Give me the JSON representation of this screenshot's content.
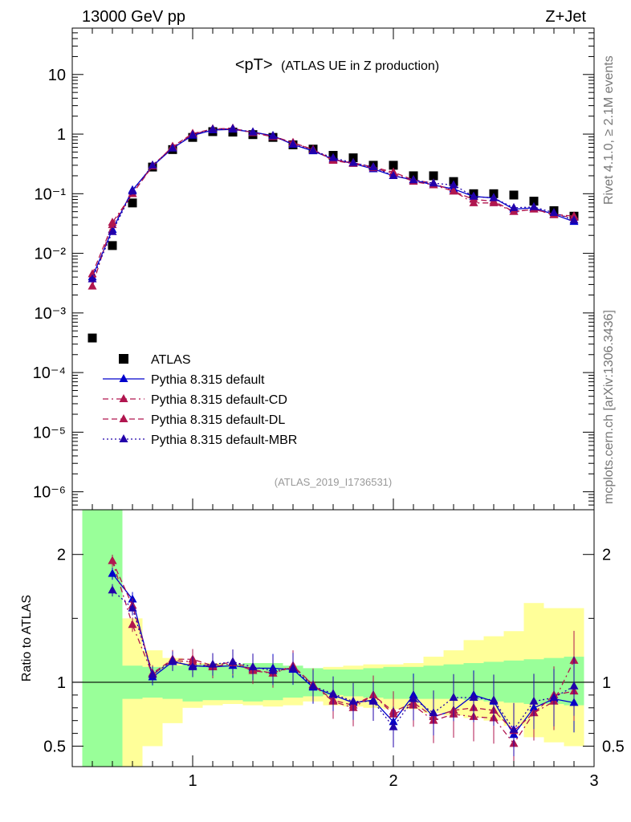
{
  "header": {
    "left": "13000 GeV pp",
    "right": "Z+Jet"
  },
  "side_labels": {
    "rivet": "Rivet 4.1.0, ≥ 2.1M events",
    "mcplots": "mcplots.cern.ch [arXiv:1306.3436]"
  },
  "analysis_ref": "(ATLAS_2019_I1736531)",
  "chart_data": [
    {
      "type": "scatter",
      "title": "<pT> (ATLAS UE in Z production)",
      "title_main": "<pT>",
      "title_sub": "(ATLAS UE in Z production)",
      "xlim": [
        0.4,
        3.0
      ],
      "ylim": [
        5e-07,
        60
      ],
      "yscale": "log",
      "ytick_labels": [
        "10",
        "1",
        "10⁻¹",
        "10⁻²",
        "10⁻³",
        "10⁻⁴",
        "10⁻⁵",
        "10⁻⁶"
      ],
      "x": [
        0.5,
        0.6,
        0.7,
        0.8,
        0.9,
        1.0,
        1.1,
        1.2,
        1.3,
        1.4,
        1.5,
        1.6,
        1.7,
        1.8,
        1.9,
        2.0,
        2.1,
        2.2,
        2.3,
        2.4,
        2.5,
        2.6,
        2.7,
        2.8,
        2.9
      ],
      "series": [
        {
          "name": "ATLAS",
          "color": "#000000",
          "marker": "square",
          "values": [
            0.00038,
            0.0135,
            0.07,
            0.28,
            0.55,
            0.88,
            1.1,
            1.08,
            0.98,
            0.88,
            0.66,
            0.56,
            0.44,
            0.4,
            0.3,
            0.3,
            0.2,
            0.2,
            0.16,
            0.1,
            0.1,
            0.095,
            0.075,
            0.052,
            0.042
          ]
        },
        {
          "name": "Pythia 8.315 default",
          "color": "#0000cc",
          "marker": "triangle",
          "dash": "",
          "values": [
            0.004,
            0.025,
            0.115,
            0.29,
            0.58,
            0.95,
            1.17,
            1.2,
            1.08,
            0.94,
            0.67,
            0.52,
            0.38,
            0.32,
            0.26,
            0.2,
            0.17,
            0.14,
            0.12,
            0.09,
            0.085,
            0.055,
            0.058,
            0.045,
            0.034
          ]
        },
        {
          "name": "Pythia 8.315 default-CD",
          "color": "#b0164f",
          "marker": "triangle",
          "dash": "7,4,2,4",
          "values": [
            0.0028,
            0.033,
            0.1,
            0.3,
            0.6,
            1.0,
            1.2,
            1.23,
            1.05,
            0.9,
            0.71,
            0.55,
            0.36,
            0.32,
            0.27,
            0.22,
            0.16,
            0.14,
            0.11,
            0.07,
            0.07,
            0.05,
            0.055,
            0.044,
            0.04
          ]
        },
        {
          "name": "Pythia 8.315 default-DL",
          "color": "#b0164f",
          "marker": "triangle",
          "dash": "7,4",
          "values": [
            0.0045,
            0.03,
            0.1,
            0.29,
            0.62,
            1.02,
            1.22,
            1.25,
            1.06,
            0.92,
            0.72,
            0.55,
            0.37,
            0.33,
            0.28,
            0.23,
            0.17,
            0.15,
            0.11,
            0.08,
            0.075,
            0.05,
            0.055,
            0.045,
            0.042
          ]
        },
        {
          "name": "Pythia 8.315 default-MBR",
          "color": "#2200aa",
          "marker": "triangle",
          "dash": "2,3",
          "values": [
            0.0037,
            0.023,
            0.11,
            0.3,
            0.58,
            0.97,
            1.2,
            1.23,
            1.08,
            0.93,
            0.68,
            0.53,
            0.4,
            0.33,
            0.28,
            0.2,
            0.17,
            0.15,
            0.14,
            0.09,
            0.085,
            0.058,
            0.06,
            0.048,
            0.036
          ]
        }
      ]
    },
    {
      "type": "line",
      "ylabel": "Ratio to ATLAS",
      "xlim": [
        0.4,
        3.0
      ],
      "ylim": [
        0.34,
        2.35
      ],
      "xticks": [
        1,
        2,
        3
      ],
      "yticks": [
        0.5,
        1,
        2
      ],
      "band_stat_lo": [
        0.3,
        0.3,
        0.87,
        0.88,
        0.87,
        0.85,
        0.86,
        0.86,
        0.85,
        0.86,
        0.88,
        0.89,
        0.9,
        0.89,
        0.88,
        0.87,
        0.87,
        0.87,
        0.87,
        0.86,
        0.85,
        0.84,
        0.83,
        0.83,
        0.82
      ],
      "band_stat_hi": [
        2.35,
        2.35,
        1.13,
        1.12,
        1.13,
        1.14,
        1.14,
        1.14,
        1.15,
        1.15,
        1.13,
        1.11,
        1.1,
        1.1,
        1.11,
        1.12,
        1.12,
        1.13,
        1.14,
        1.15,
        1.16,
        1.17,
        1.18,
        1.19,
        1.2
      ],
      "band_syst_lo": [
        0.3,
        0.3,
        0.3,
        0.5,
        0.68,
        0.8,
        0.82,
        0.83,
        0.82,
        0.81,
        0.82,
        0.85,
        0.82,
        0.81,
        0.8,
        0.79,
        0.79,
        0.76,
        0.74,
        0.72,
        0.7,
        0.66,
        0.57,
        0.53,
        0.5
      ],
      "band_syst_hi": [
        2.35,
        2.35,
        1.5,
        1.25,
        1.19,
        1.15,
        1.15,
        1.13,
        1.14,
        1.13,
        1.12,
        1.11,
        1.12,
        1.13,
        1.14,
        1.14,
        1.15,
        1.2,
        1.25,
        1.33,
        1.36,
        1.4,
        1.62,
        1.58,
        1.58
      ],
      "x": [
        0.5,
        0.6,
        0.7,
        0.8,
        0.9,
        1.0,
        1.1,
        1.2,
        1.3,
        1.4,
        1.5,
        1.6,
        1.7,
        1.8,
        1.9,
        2.0,
        2.1,
        2.2,
        2.3,
        2.4,
        2.5,
        2.6,
        2.7,
        2.8,
        2.9
      ],
      "series": [
        {
          "name": "Pythia 8.315 default",
          "color": "#0000cc",
          "values": [
            null,
            1.85,
            1.65,
            1.04,
            1.16,
            1.13,
            1.12,
            1.13,
            1.11,
            1.11,
            1.1,
            0.96,
            0.9,
            0.84,
            0.86,
            0.69,
            0.9,
            0.73,
            0.78,
            0.9,
            0.85,
            0.59,
            0.8,
            0.87,
            0.84
          ]
        },
        {
          "name": "Pythia 8.315 default-CD",
          "color": "#b0164f",
          "values": [
            null,
            1.95,
            1.45,
            1.06,
            1.17,
            1.16,
            1.12,
            1.15,
            1.09,
            1.07,
            1.12,
            0.98,
            0.85,
            0.8,
            0.9,
            0.75,
            0.82,
            0.7,
            0.75,
            0.73,
            0.72,
            0.52,
            0.76,
            0.85,
            1.17
          ]
        },
        {
          "name": "Pythia 8.315 default-DL",
          "color": "#b0164f",
          "values": [
            null,
            1.95,
            1.6,
            1.07,
            1.18,
            1.18,
            1.13,
            1.16,
            1.1,
            1.07,
            1.13,
            0.98,
            0.86,
            0.82,
            0.9,
            0.77,
            0.84,
            0.73,
            0.78,
            0.8,
            0.78,
            0.62,
            0.76,
            0.9,
            0.93
          ]
        },
        {
          "name": "Pythia 8.315 default-MBR",
          "color": "#2200aa",
          "values": [
            null,
            1.72,
            1.58,
            1.06,
            1.17,
            1.12,
            1.14,
            1.16,
            1.12,
            1.09,
            1.11,
            0.97,
            0.91,
            0.85,
            0.85,
            0.65,
            0.87,
            0.76,
            0.88,
            0.88,
            0.86,
            0.63,
            0.85,
            0.88,
            0.97
          ]
        }
      ]
    }
  ]
}
